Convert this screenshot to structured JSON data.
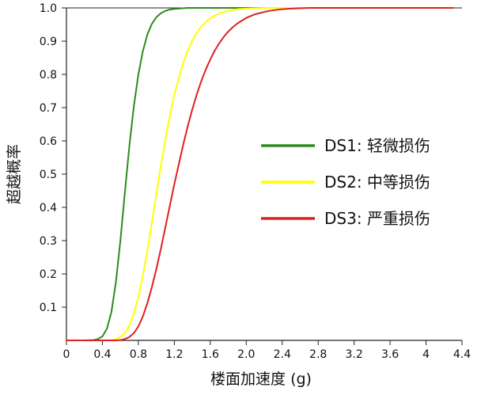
{
  "chart_data": {
    "type": "line",
    "xlabel": "楼面加速度 (g)",
    "ylabel": "超越概率",
    "xlim": [
      0,
      4.4
    ],
    "ylim": [
      0,
      1.0
    ],
    "xticks": [
      0,
      0.4,
      0.8,
      1.2,
      1.6,
      2.0,
      2.4,
      2.8,
      3.2,
      3.6,
      4,
      4.4
    ],
    "xtick_labels": [
      "0",
      "0.4",
      "0.8",
      "1.2",
      "1.6",
      "2.0",
      "2.4",
      "2.8",
      "3.2",
      "3.6",
      "4",
      "4.4"
    ],
    "yticks": [
      0.1,
      0.2,
      0.3,
      0.4,
      0.5,
      0.6,
      0.7,
      0.8,
      0.9,
      1.0
    ],
    "ytick_labels": [
      "0.1",
      "0.2",
      "0.3",
      "0.4",
      "0.5",
      "0.6",
      "0.7",
      "0.8",
      "0.9",
      "1.0"
    ],
    "grid": false,
    "legend_position": "right",
    "x": [
      0,
      0.1,
      0.2,
      0.3,
      0.35,
      0.4,
      0.45,
      0.5,
      0.55,
      0.6,
      0.65,
      0.7,
      0.75,
      0.8,
      0.85,
      0.9,
      0.95,
      1.0,
      1.05,
      1.1,
      1.15,
      1.2,
      1.25,
      1.3,
      1.35,
      1.4,
      1.45,
      1.5,
      1.55,
      1.6,
      1.65,
      1.7,
      1.75,
      1.8,
      1.85,
      1.9,
      2.0,
      2.1,
      2.2,
      2.3,
      2.4,
      2.5,
      2.6,
      2.7,
      2.8,
      3.0,
      3.2,
      3.4,
      3.6,
      3.8,
      4.0,
      4.3
    ],
    "series": [
      {
        "name": "DS1: 轻微损伤",
        "color": "#2e8b1e",
        "values": [
          0,
          0,
          0,
          0.001,
          0.004,
          0.012,
          0.035,
          0.085,
          0.175,
          0.3,
          0.445,
          0.585,
          0.705,
          0.8,
          0.87,
          0.92,
          0.952,
          0.972,
          0.984,
          0.991,
          0.995,
          0.997,
          0.998,
          0.999,
          1,
          1,
          1,
          1,
          1,
          1,
          1,
          1,
          1,
          1,
          1,
          1,
          1,
          1,
          1,
          1,
          1,
          1,
          1,
          1,
          1,
          1,
          1,
          1,
          1,
          1,
          1,
          1
        ]
      },
      {
        "name": "DS2: 中等损伤",
        "color": "#ffff00",
        "values": [
          0,
          0,
          0,
          0,
          0,
          0,
          0,
          0.001,
          0.004,
          0.01,
          0.022,
          0.045,
          0.08,
          0.13,
          0.195,
          0.27,
          0.355,
          0.44,
          0.525,
          0.605,
          0.675,
          0.74,
          0.79,
          0.835,
          0.872,
          0.902,
          0.925,
          0.944,
          0.958,
          0.969,
          0.977,
          0.983,
          0.988,
          0.991,
          0.994,
          0.996,
          0.998,
          0.999,
          1,
          1,
          1,
          1,
          1,
          1,
          1,
          1,
          1,
          1,
          1,
          1,
          1,
          1
        ]
      },
      {
        "name": "DS3: 严重损伤",
        "color": "#e02020",
        "values": [
          0,
          0,
          0,
          0,
          0,
          0,
          0,
          0,
          0,
          0.001,
          0.004,
          0.01,
          0.022,
          0.042,
          0.072,
          0.112,
          0.16,
          0.215,
          0.275,
          0.34,
          0.405,
          0.47,
          0.53,
          0.59,
          0.645,
          0.695,
          0.74,
          0.78,
          0.815,
          0.845,
          0.872,
          0.894,
          0.913,
          0.929,
          0.942,
          0.953,
          0.97,
          0.981,
          0.988,
          0.993,
          0.996,
          0.998,
          0.999,
          1,
          1,
          1,
          1,
          1,
          1,
          1,
          1,
          1
        ]
      }
    ]
  }
}
